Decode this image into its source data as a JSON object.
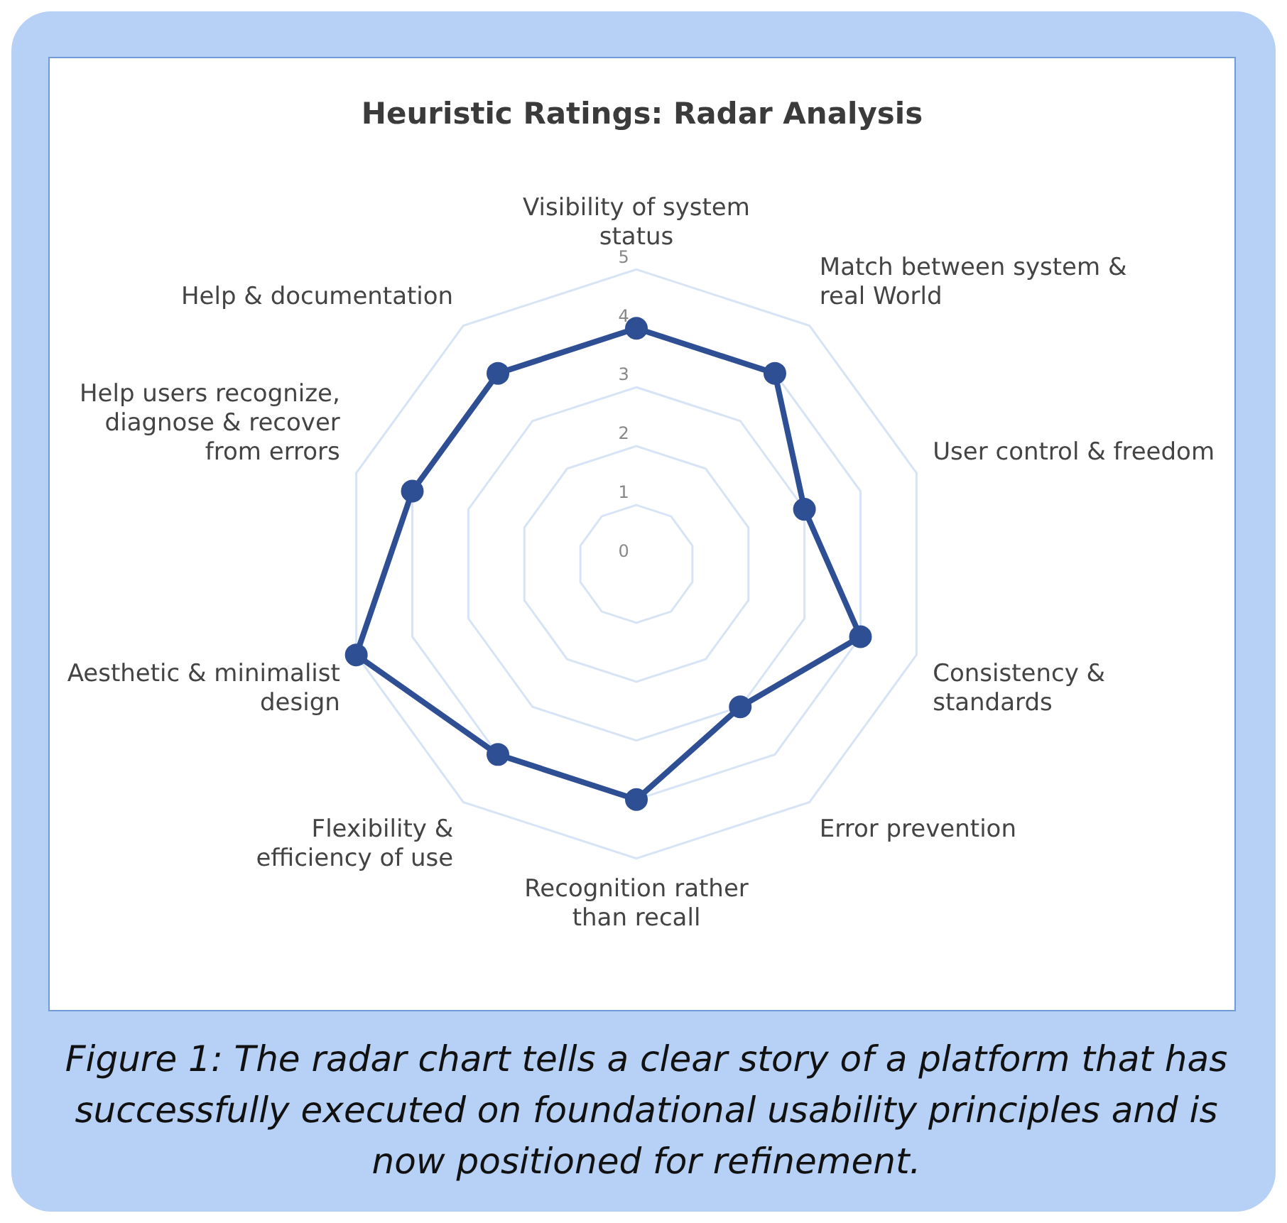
{
  "chart_data": {
    "type": "radar",
    "title": "Heuristic Ratings: Radar Analysis",
    "categories": [
      "Visibility of system status",
      "Match between system & real World",
      "User control & freedom",
      "Consistency & standards",
      "Error prevention",
      "Recognition rather than recall",
      "Flexibility & efficiency of use",
      "Aesthetic & minimalist design",
      "Help users recognize, diagnose & recover from errors",
      "Help & documentation"
    ],
    "series": [
      {
        "color": "#2f4f94",
        "values": [
          4,
          4,
          3,
          4,
          3,
          4,
          4,
          5,
          4,
          4
        ]
      }
    ],
    "ylim": [
      0,
      5
    ],
    "yticks": [
      0,
      1,
      2,
      3,
      4,
      5
    ],
    "grid": true,
    "marker": "circle",
    "annotations": [
      "Figure 1:  The radar chart tells a clear story of a platform that has successfully executed on foundational usability principles and is now positioned for refinement."
    ]
  }
}
